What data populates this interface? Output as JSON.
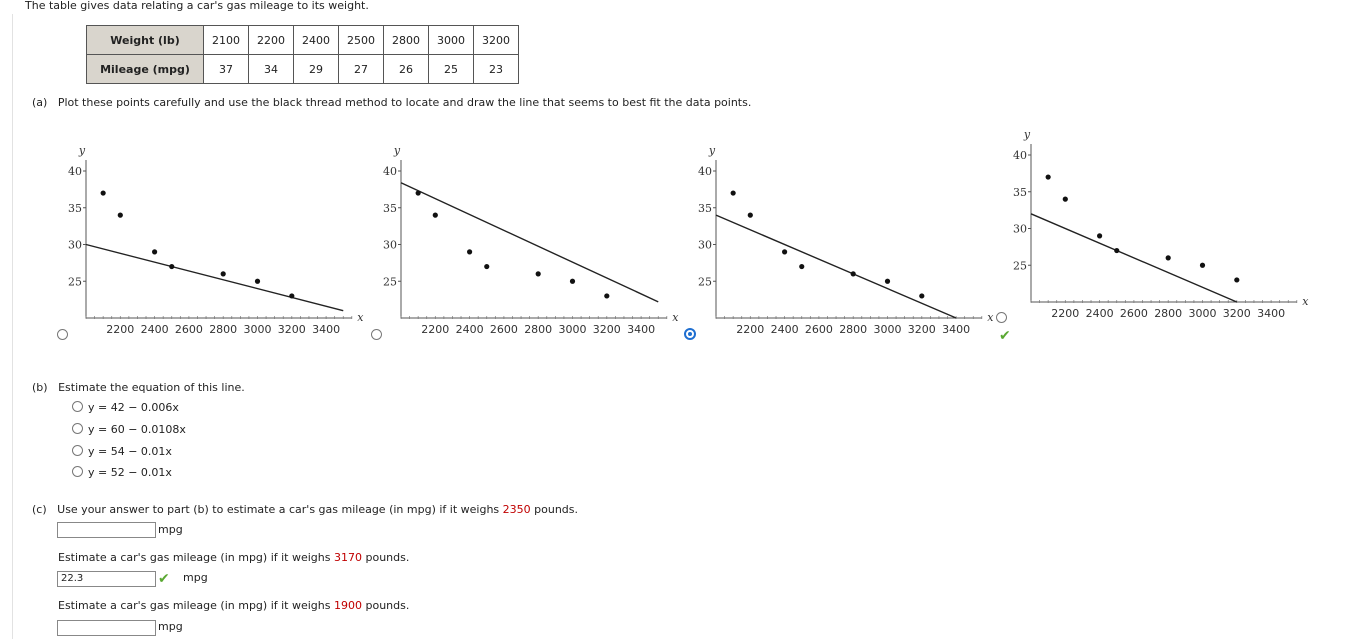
{
  "intro": "The table gives data relating a car's gas mileage to its weight.",
  "table": {
    "row1_label": "Weight (lb)",
    "row2_label": "Mileage (mpg)",
    "weights": [
      "2100",
      "2200",
      "2400",
      "2500",
      "2800",
      "3000",
      "3200"
    ],
    "mileages": [
      "37",
      "34",
      "29",
      "27",
      "26",
      "25",
      "23"
    ]
  },
  "part_a": {
    "label": "(a)",
    "text": "Plot these points carefully and use the black thread method to locate and draw the line that seems to best fit the data points.",
    "selected_option": 3,
    "graphs": [
      {
        "y_axis_label": "y",
        "x_axis_label": "x",
        "y_ticks": [
          "40",
          "35",
          "30",
          "25"
        ],
        "x_ticks": [
          "2200",
          "2400",
          "2600",
          "2800",
          "3000",
          "3200",
          "3400"
        ],
        "line": {
          "intercept": 42,
          "slope": -0.006
        }
      },
      {
        "y_axis_label": "y",
        "x_axis_label": "x",
        "y_ticks": [
          "40",
          "35",
          "30",
          "25"
        ],
        "x_ticks": [
          "2200",
          "2400",
          "2600",
          "2800",
          "3000",
          "3200",
          "3400"
        ],
        "line": {
          "intercept": 60,
          "slope": -0.0108
        }
      },
      {
        "y_axis_label": "y",
        "x_axis_label": "x",
        "y_ticks": [
          "40",
          "35",
          "30",
          "25"
        ],
        "x_ticks": [
          "2200",
          "2400",
          "2600",
          "2800",
          "3000",
          "3200",
          "3400"
        ],
        "line": {
          "intercept": 54,
          "slope": -0.01
        }
      },
      {
        "y_axis_label": "y",
        "x_axis_label": "x",
        "y_ticks": [
          "40",
          "35",
          "30",
          "25"
        ],
        "x_ticks": [
          "2200",
          "2400",
          "2600",
          "2800",
          "3000",
          "3200",
          "3400"
        ],
        "line": {
          "intercept": 52,
          "slope": -0.01
        }
      }
    ],
    "points": [
      [
        2100,
        37
      ],
      [
        2200,
        34
      ],
      [
        2400,
        29
      ],
      [
        2500,
        27
      ],
      [
        2800,
        26
      ],
      [
        3000,
        25
      ],
      [
        3200,
        23
      ]
    ]
  },
  "part_b": {
    "label": "(b)",
    "text": "Estimate the equation of this line.",
    "options": [
      "y = 42 − 0.006x",
      "y = 60 − 0.0108x",
      "y = 54 − 0.01x",
      "y = 52 − 0.01x"
    ]
  },
  "part_c": {
    "label": "(c)",
    "q1_prefix": "Use your answer to part (b) to estimate a car's gas mileage (in mpg) if it weighs",
    "q1_weight": "2350",
    "q1_suffix": "pounds.",
    "q1_value": "",
    "unit": "mpg",
    "q2_prefix": "Estimate a car's gas mileage (in mpg) if it weighs",
    "q2_weight": "3170",
    "q2_suffix": "pounds.",
    "q2_value": "22.3",
    "q3_prefix": "Estimate a car's gas mileage (in mpg) if it weighs",
    "q3_weight": "1900",
    "q3_suffix": "pounds.",
    "q3_value": ""
  },
  "colors": {
    "correct": "#5aa832",
    "selected": "#1f6fd1",
    "highlight": "#c00000",
    "table_header": "#d9d5cd"
  }
}
